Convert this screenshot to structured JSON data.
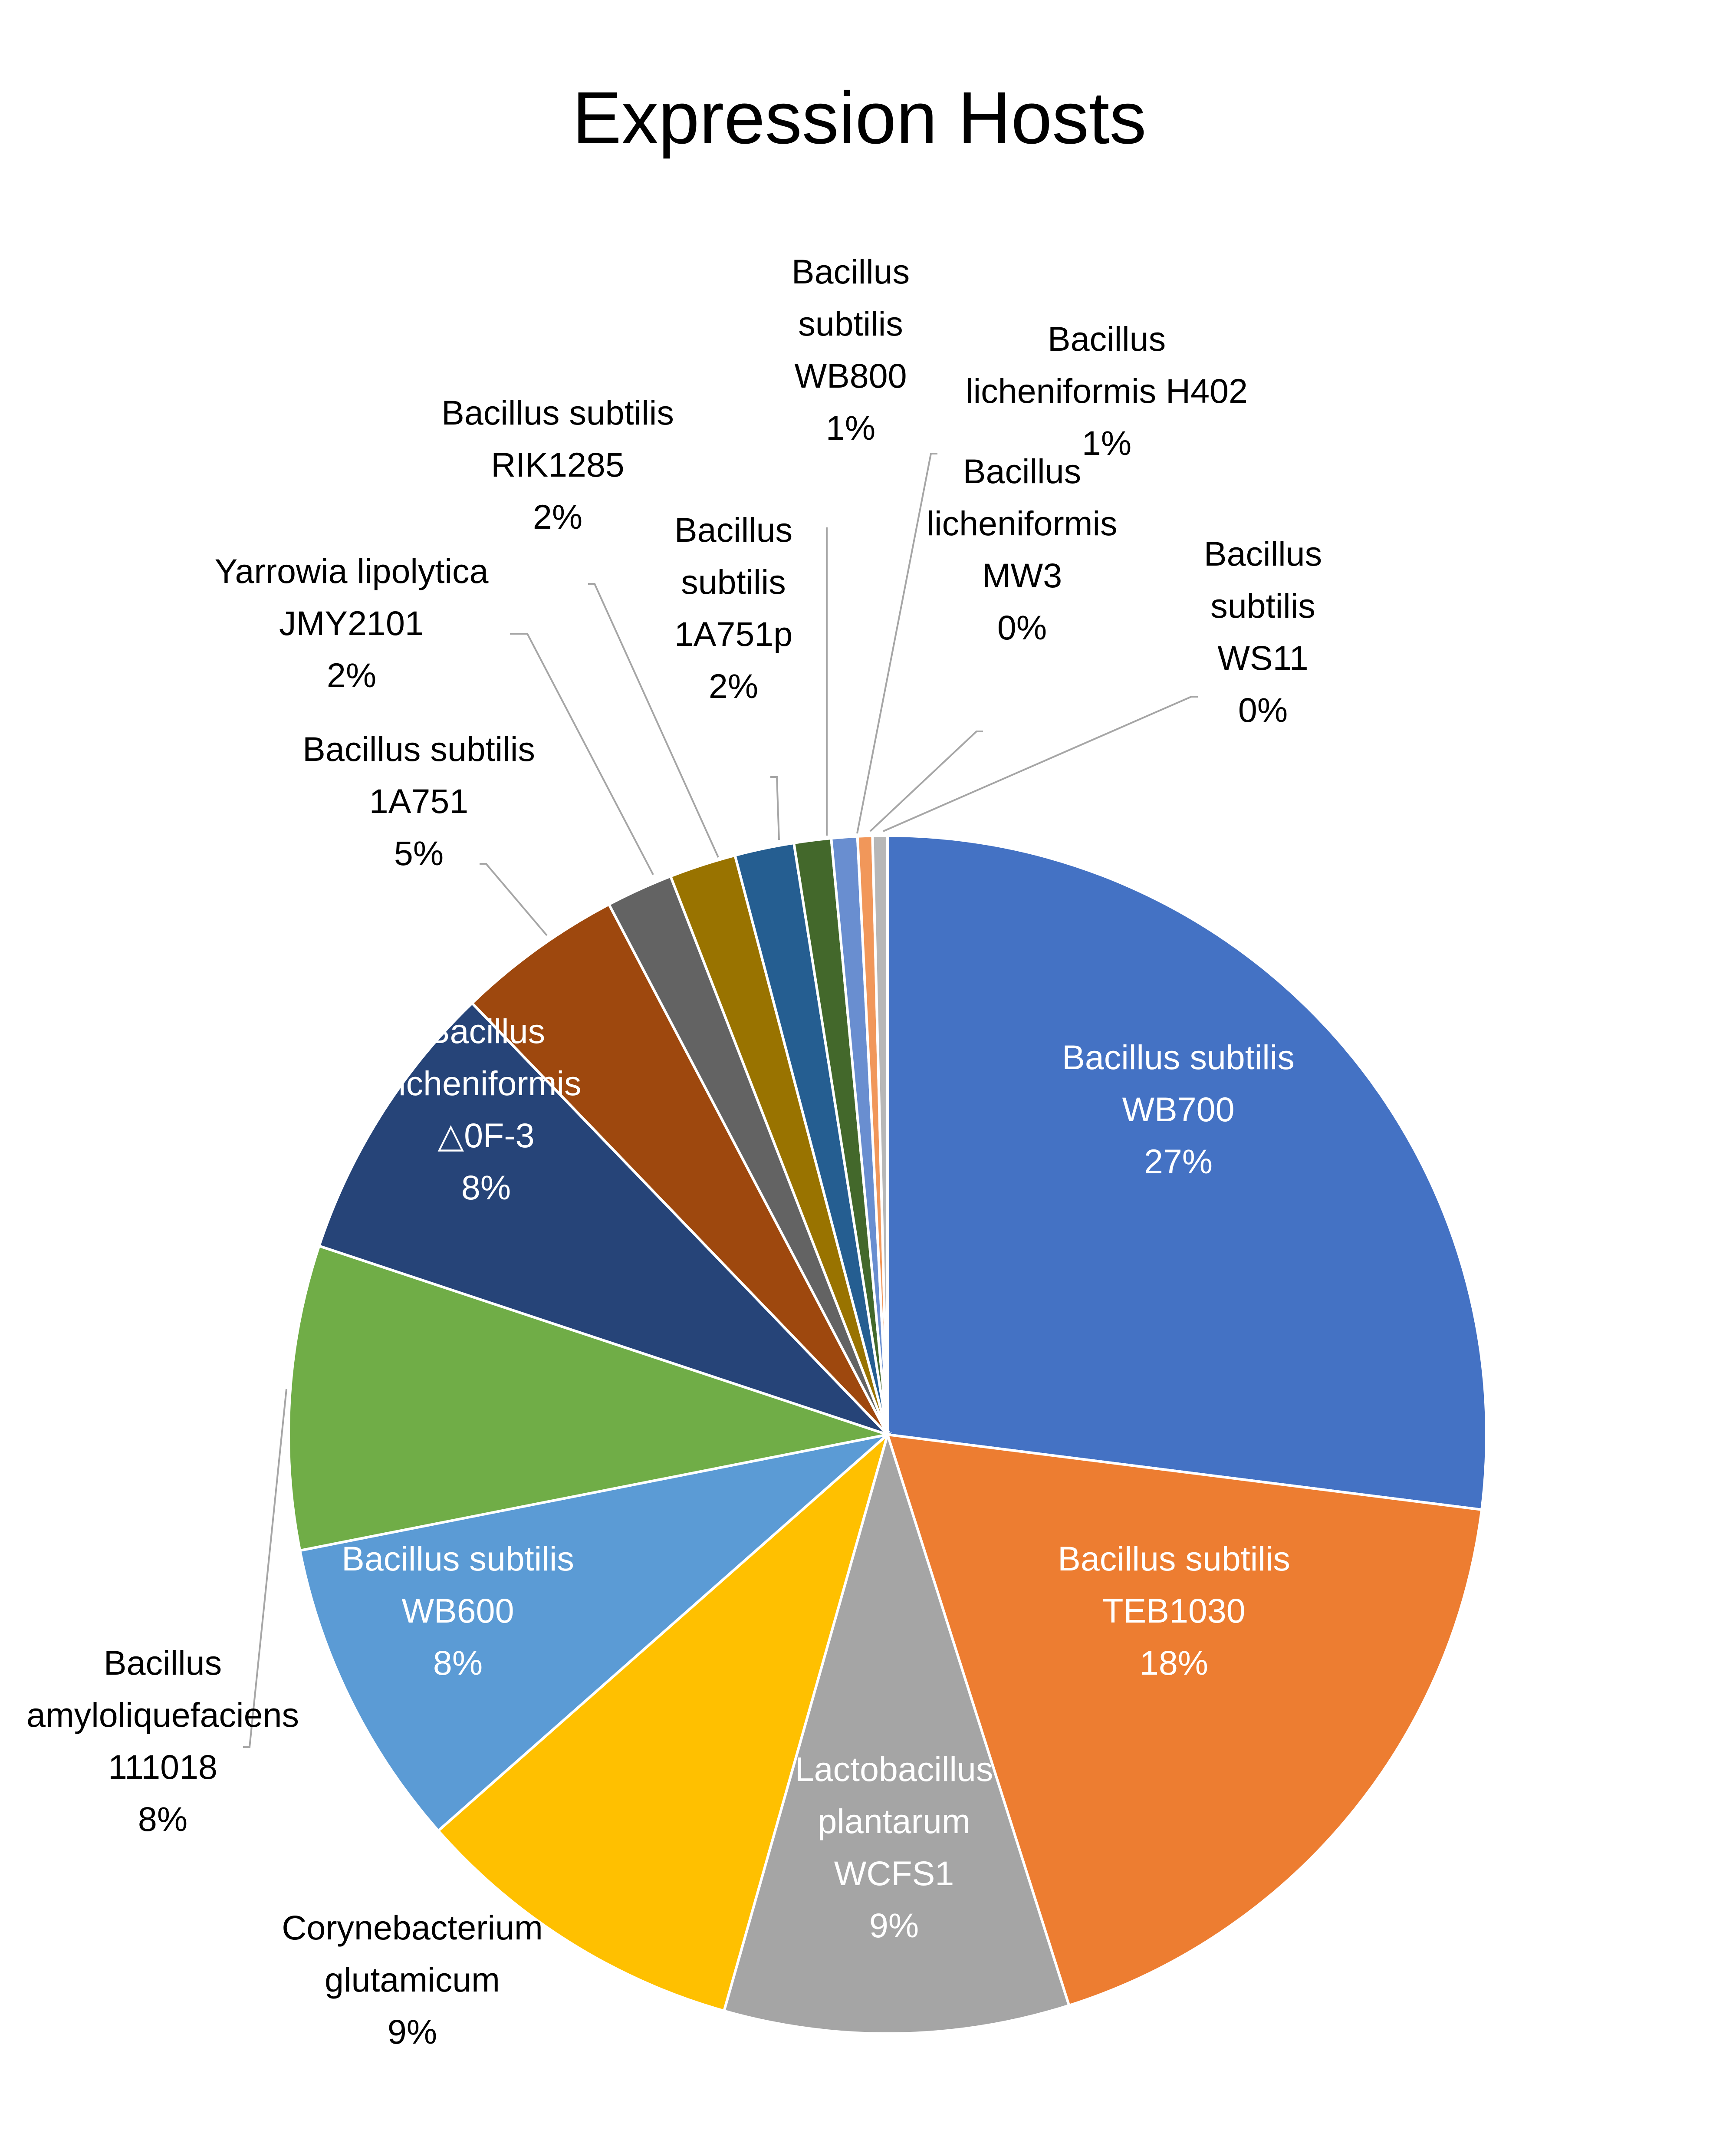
{
  "chart_data": {
    "type": "pie",
    "title": "Expression Hosts",
    "start_angle_deg": 0,
    "direction": "clockwise",
    "slices": [
      {
        "label": "Bacillus subtilis WB700",
        "value": 27.0,
        "value_label": "27%",
        "color": "#4472C4"
      },
      {
        "label": "Bacillus subtilis TEB1030",
        "value": 18.1,
        "value_label": "18%",
        "color": "#ED7D31"
      },
      {
        "label": "Lactobacillus plantarum WCFS1",
        "value": 9.3,
        "value_label": "9%",
        "color": "#A5A5A5"
      },
      {
        "label": "Corynebacterium glutamicum",
        "value": 9.1,
        "value_label": "9%",
        "color": "#FFC000"
      },
      {
        "label": "Bacillus subtilis WB600",
        "value": 8.4,
        "value_label": "8%",
        "color": "#5B9BD5"
      },
      {
        "label": "Bacillus amyloliquefaciens 111018",
        "value": 8.2,
        "value_label": "8%",
        "color": "#70AD47"
      },
      {
        "label": "Bacillus licheniformis △0F-3",
        "value": 7.7,
        "value_label": "8%",
        "color": "#264478"
      },
      {
        "label": "Bacillus subtilis 1A751",
        "value": 4.5,
        "value_label": "5%",
        "color": "#9E480E"
      },
      {
        "label": "Yarrowia lipolytica JMY2101",
        "value": 1.8,
        "value_label": "2%",
        "color": "#636363"
      },
      {
        "label": "Bacillus subtilis RIK1285",
        "value": 1.8,
        "value_label": "2%",
        "color": "#997300"
      },
      {
        "label": "Bacillus subtilis 1A751p",
        "value": 1.6,
        "value_label": "2%",
        "color": "#255E91"
      },
      {
        "label": "Bacillus subtilis WB800",
        "value": 1.0,
        "value_label": "1%",
        "color": "#43682B"
      },
      {
        "label": "Bacillus licheniformis H402",
        "value": 0.7,
        "value_label": "1%",
        "color": "#698ED0"
      },
      {
        "label": "Bacillus licheniformis MW3",
        "value": 0.4,
        "value_label": "0%",
        "color": "#F1975A"
      },
      {
        "label": "Bacillus subtilis WS11",
        "value": 0.4,
        "value_label": "0%",
        "color": "#B7B7B7"
      }
    ],
    "data_labels": [
      {
        "lines": [
          "Bacillus subtilis",
          "WB700",
          "27%"
        ]
      },
      {
        "lines": [
          "Bacillus subtilis",
          "TEB1030",
          "18%"
        ]
      },
      {
        "lines": [
          "Lactobacillus",
          "plantarum",
          "WCFS1",
          "9%"
        ]
      },
      {
        "lines": [
          "Corynebacterium",
          "glutamicum",
          "9%"
        ]
      },
      {
        "lines": [
          "Bacillus subtilis",
          "WB600",
          "8%"
        ]
      },
      {
        "lines": [
          "Bacillus",
          "amyloliquefaciens",
          "111018",
          "8%"
        ]
      },
      {
        "lines": [
          "Bacillus",
          "licheniformis",
          "△0F-3",
          "8%"
        ]
      },
      {
        "lines": [
          "Bacillus subtilis",
          "1A751",
          "5%"
        ]
      },
      {
        "lines": [
          "Yarrowia lipolytica",
          "JMY2101",
          "2%"
        ]
      },
      {
        "lines": [
          "Bacillus subtilis",
          "RIK1285",
          "2%"
        ]
      },
      {
        "lines": [
          "Bacillus",
          "subtilis",
          "1A751p",
          "2%"
        ]
      },
      {
        "lines": [
          "Bacillus",
          "subtilis",
          "WB800",
          "1%"
        ]
      },
      {
        "lines": [
          "Bacillus",
          "licheniformis H402",
          "1%"
        ]
      },
      {
        "lines": [
          "Bacillus",
          "licheniformis",
          "MW3",
          "0%"
        ]
      },
      {
        "lines": [
          "Bacillus",
          "subtilis",
          "WS11",
          "0%"
        ]
      }
    ],
    "legend": "none"
  }
}
